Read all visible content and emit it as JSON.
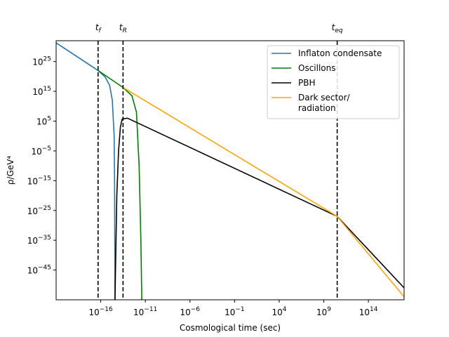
{
  "chart_data": {
    "type": "line",
    "xscale": "log",
    "yscale": "log",
    "xlabel": "Cosmological time (sec)",
    "ylabel": "ρ/GeV⁴",
    "xlim_exp": [
      -21,
      18
    ],
    "ylim_exp": [
      -55,
      32
    ],
    "xticks": [
      {
        "exp": -16,
        "label": "10",
        "sup": "−16"
      },
      {
        "exp": -11,
        "label": "10",
        "sup": "−11"
      },
      {
        "exp": -6,
        "label": "10",
        "sup": "−6"
      },
      {
        "exp": -1,
        "label": "10",
        "sup": "−1"
      },
      {
        "exp": 4,
        "label": "10",
        "sup": "4"
      },
      {
        "exp": 9,
        "label": "10",
        "sup": "9"
      },
      {
        "exp": 14,
        "label": "10",
        "sup": "14"
      }
    ],
    "yticks": [
      {
        "exp": 25,
        "label": "10",
        "sup": "25"
      },
      {
        "exp": 15,
        "label": "10",
        "sup": "15"
      },
      {
        "exp": 5,
        "label": "10",
        "sup": "5"
      },
      {
        "exp": -5,
        "label": "10",
        "sup": "−5"
      },
      {
        "exp": -15,
        "label": "10",
        "sup": "−15"
      },
      {
        "exp": -25,
        "label": "10",
        "sup": "−25"
      },
      {
        "exp": -35,
        "label": "10",
        "sup": "−35"
      },
      {
        "exp": -45,
        "label": "10",
        "sup": "−45"
      }
    ],
    "vlines": [
      {
        "x_exp": -16.3,
        "label": "t",
        "sub": "f"
      },
      {
        "x_exp": -13.5,
        "label": "t",
        "sub": "R"
      },
      {
        "x_exp": 10.5,
        "label": "t",
        "sub": "eq"
      }
    ],
    "series": [
      {
        "name": "Inflaton condensate",
        "color": "#1f77b4",
        "points": [
          [
            -21,
            31.3
          ],
          [
            -16.3,
            22
          ],
          [
            -15.5,
            19.8
          ],
          [
            -15.0,
            17
          ],
          [
            -14.7,
            12
          ],
          [
            -14.5,
            0
          ],
          [
            -14.45,
            -15
          ],
          [
            -14.4,
            -56
          ]
        ]
      },
      {
        "name": "Oscillons",
        "color": "#008000",
        "points": [
          [
            -16.3,
            22
          ],
          [
            -13.5,
            16.3
          ],
          [
            -12.5,
            13.5
          ],
          [
            -12.0,
            8
          ],
          [
            -11.7,
            -10
          ],
          [
            -11.5,
            -35
          ],
          [
            -11.4,
            -55
          ]
        ]
      },
      {
        "name": "PBH",
        "color": "#000000",
        "points": [
          [
            -14.4,
            -55
          ],
          [
            -14.2,
            -20
          ],
          [
            -14.0,
            -5
          ],
          [
            -13.8,
            3
          ],
          [
            -13.6,
            5.7
          ],
          [
            -13.0,
            6
          ],
          [
            10.5,
            -27
          ],
          [
            18,
            -51
          ]
        ]
      },
      {
        "name": "Dark sector/\nradiation",
        "color": "#ffa500",
        "points": [
          [
            -13.5,
            16.3
          ],
          [
            10.5,
            -27
          ],
          [
            18,
            -54
          ]
        ]
      }
    ],
    "legend": {
      "placement": "upper-right",
      "entries": [
        "Inflaton condensate",
        "Oscillons",
        "PBH",
        "Dark sector/\nradiation"
      ]
    }
  }
}
